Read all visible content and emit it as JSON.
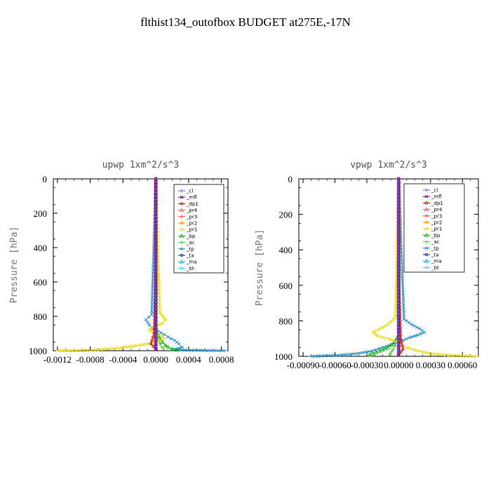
{
  "title": "flthist134_outofbox  BUDGET at275E,-17N",
  "chart_data": [
    {
      "type": "line",
      "title": "upwp  1xm^2/s^3",
      "ylabel": "Pressure [hPa]",
      "xlim": [
        -0.00125,
        0.00088
      ],
      "ylim": [
        1000,
        0
      ],
      "x_ticks": [
        "-0.0012",
        "-0.0008",
        "-0.0004",
        "0.0000",
        "0.0004",
        "0.0008"
      ],
      "x_tick_values": [
        -0.0012,
        -0.0008,
        -0.0004,
        0.0,
        0.0004,
        0.0008
      ],
      "y_ticks": [
        "0",
        "200",
        "400",
        "600",
        "800",
        "1000"
      ],
      "y_tick_values": [
        0,
        200,
        400,
        600,
        800,
        1000
      ],
      "legend": [
        "_cl",
        "_mfl",
        "_dp1",
        "_pr4",
        "_pr3",
        "_pr2",
        "_pr1",
        "_bp",
        "_ac",
        "_tp",
        "_ta",
        "_ma",
        "_bt"
      ],
      "series": [
        {
          "name": "_cl",
          "color": "#6a5acd",
          "x": [
            0,
            0,
            0,
            0,
            0,
            0,
            0
          ],
          "y": [
            0,
            200,
            400,
            600,
            800,
            950,
            1000
          ]
        },
        {
          "name": "_mfl",
          "color": "#800080",
          "x": [
            0,
            0,
            0,
            0,
            0,
            0
          ],
          "y": [
            0,
            200,
            400,
            600,
            800,
            1000
          ]
        },
        {
          "name": "_dp1",
          "color": "#c00000",
          "x": [
            0,
            0,
            -2e-05,
            -6e-05,
            0,
            3e-05
          ],
          "y": [
            0,
            600,
            900,
            960,
            990,
            1000
          ]
        },
        {
          "name": "_pr4",
          "color": "#e06060",
          "x": [
            0,
            0,
            0,
            0
          ],
          "y": [
            0,
            500,
            900,
            1000
          ]
        },
        {
          "name": "_pr3",
          "color": "#ff4040",
          "x": [
            0,
            0,
            0,
            0
          ],
          "y": [
            0,
            500,
            900,
            1000
          ]
        },
        {
          "name": "_pr2",
          "color": "#ff9900",
          "x": [
            0,
            0,
            0,
            0
          ],
          "y": [
            0,
            500,
            900,
            1000
          ]
        },
        {
          "name": "_pr1",
          "color": "#e8d800",
          "x": [
            0,
            5e-05,
            0.00012,
            8e-05,
            -2e-05,
            -8e-05,
            -2e-05,
            8e-05,
            0.0001,
            2e-05,
            -0.0001,
            -0.0003,
            -0.00045,
            -0.0007,
            -0.0009,
            -0.00122
          ],
          "y": [
            0,
            780,
            820,
            840,
            860,
            880,
            900,
            915,
            930,
            945,
            960,
            975,
            985,
            993,
            997,
            1000
          ]
        },
        {
          "name": "_bp",
          "color": "#00b000",
          "x": [
            0,
            0,
            4e-05,
            8e-05,
            0.00012,
            0.00015,
            0.0002,
            0.0003
          ],
          "y": [
            0,
            880,
            920,
            950,
            970,
            980,
            990,
            1000
          ]
        },
        {
          "name": "_ac",
          "color": "#40d040",
          "x": [
            0,
            0,
            5e-05,
            0.0001
          ],
          "y": [
            0,
            900,
            960,
            1000
          ]
        },
        {
          "name": "_tp",
          "color": "#2a8fc9",
          "x": [
            0,
            -5e-05,
            -0.00012,
            -8e-05,
            -4e-05,
            2e-05,
            6e-05,
            0.0001,
            0.00015,
            0.00023,
            0.00028,
            0.00032,
            0.00025,
            0.0002,
            0.00035,
            0.0006,
            0.00087
          ],
          "y": [
            0,
            790,
            820,
            850,
            870,
            880,
            895,
            905,
            920,
            940,
            960,
            980,
            990,
            993,
            996,
            998,
            1000
          ]
        },
        {
          "name": "_ta",
          "color": "#202080",
          "x": [
            0,
            0,
            0,
            0
          ],
          "y": [
            0,
            500,
            900,
            1000
          ]
        },
        {
          "name": "_ma",
          "color": "#00aaff",
          "x": [
            0,
            0,
            0,
            0
          ],
          "y": [
            0,
            500,
            900,
            1000
          ]
        },
        {
          "name": "_bt",
          "color": "#00e5ee",
          "x": [
            0,
            0,
            0,
            0
          ],
          "y": [
            0,
            500,
            900,
            1000
          ]
        }
      ]
    },
    {
      "type": "line",
      "title": "vpwp  1xm^2/s^3",
      "ylabel": "Pressure [hPa]",
      "xlim": [
        -0.00094,
        0.00075
      ],
      "ylim": [
        1000,
        0
      ],
      "x_ticks": [
        "-0.00090",
        "-0.00060",
        "-0.00030",
        "0.00000",
        "0.00030",
        "0.00060"
      ],
      "x_tick_values": [
        -0.0009,
        -0.0006,
        -0.0003,
        0.0,
        0.0003,
        0.0006
      ],
      "y_ticks": [
        "0",
        "200",
        "400",
        "600",
        "800",
        "1000"
      ],
      "y_tick_values": [
        0,
        200,
        400,
        600,
        800,
        1000
      ],
      "legend": [
        "_cl",
        "_mfl",
        "_dp1",
        "_pr4",
        "_pr3",
        "_pr2",
        "_pr1",
        "_bp",
        "_ac",
        "_tp",
        "_ta",
        "_ma",
        "_bt"
      ],
      "series": [
        {
          "name": "_cl",
          "color": "#6a5acd",
          "x": [
            0,
            0,
            0,
            0,
            0,
            0,
            0
          ],
          "y": [
            0,
            200,
            400,
            600,
            800,
            950,
            1000
          ]
        },
        {
          "name": "_mfl",
          "color": "#800080",
          "x": [
            0,
            0,
            0,
            0,
            0,
            0
          ],
          "y": [
            0,
            200,
            400,
            600,
            800,
            1000
          ]
        },
        {
          "name": "_dp1",
          "color": "#c00000",
          "x": [
            0,
            0,
            2e-05,
            4e-05,
            0,
            -2e-05
          ],
          "y": [
            0,
            600,
            900,
            960,
            990,
            1000
          ]
        },
        {
          "name": "_pr4",
          "color": "#e06060",
          "x": [
            0,
            0,
            0,
            0
          ],
          "y": [
            0,
            500,
            900,
            1000
          ]
        },
        {
          "name": "_pr3",
          "color": "#ff4040",
          "x": [
            0,
            0,
            0,
            0
          ],
          "y": [
            0,
            500,
            900,
            1000
          ]
        },
        {
          "name": "_pr2",
          "color": "#ff9900",
          "x": [
            0,
            0,
            0,
            0
          ],
          "y": [
            0,
            500,
            900,
            1000
          ]
        },
        {
          "name": "_pr1",
          "color": "#e8d800",
          "x": [
            0,
            -3e-05,
            -0.0001,
            -0.00018,
            -0.00024,
            -0.0002,
            -0.0001,
            -2e-05,
            5e-05,
            0.00015,
            0.0003,
            0.0005,
            0.00075
          ],
          "y": [
            0,
            780,
            820,
            845,
            865,
            885,
            900,
            920,
            945,
            965,
            985,
            995,
            1000
          ]
        },
        {
          "name": "_bp",
          "color": "#00b000",
          "x": [
            0,
            0,
            -4e-05,
            -0.0001,
            -0.00018,
            -0.00025,
            -0.0003
          ],
          "y": [
            0,
            880,
            920,
            950,
            970,
            985,
            1000
          ]
        },
        {
          "name": "_ac",
          "color": "#40d040",
          "x": [
            0,
            0,
            -5e-05,
            -0.0001
          ],
          "y": [
            0,
            900,
            960,
            1000
          ]
        },
        {
          "name": "_tp",
          "color": "#2a8fc9",
          "x": [
            0,
            5e-05,
            0.00012,
            0.0002,
            0.00024,
            0.00018,
            0.0001,
            4e-05,
            -5e-05,
            -0.00015,
            -0.00025,
            -0.0004,
            -0.0006,
            -0.00085
          ],
          "y": [
            0,
            790,
            820,
            845,
            865,
            880,
            895,
            910,
            930,
            950,
            970,
            985,
            995,
            1000
          ]
        },
        {
          "name": "_ta",
          "color": "#202080",
          "x": [
            0,
            0,
            0,
            0
          ],
          "y": [
            0,
            500,
            900,
            1000
          ]
        },
        {
          "name": "_ma",
          "color": "#00aaff",
          "x": [
            0,
            0,
            0,
            0
          ],
          "y": [
            0,
            500,
            900,
            1000
          ]
        },
        {
          "name": "_bt",
          "color": "#00e5ee",
          "x": [
            0,
            0,
            0,
            0
          ],
          "y": [
            0,
            500,
            900,
            1000
          ]
        }
      ]
    }
  ]
}
